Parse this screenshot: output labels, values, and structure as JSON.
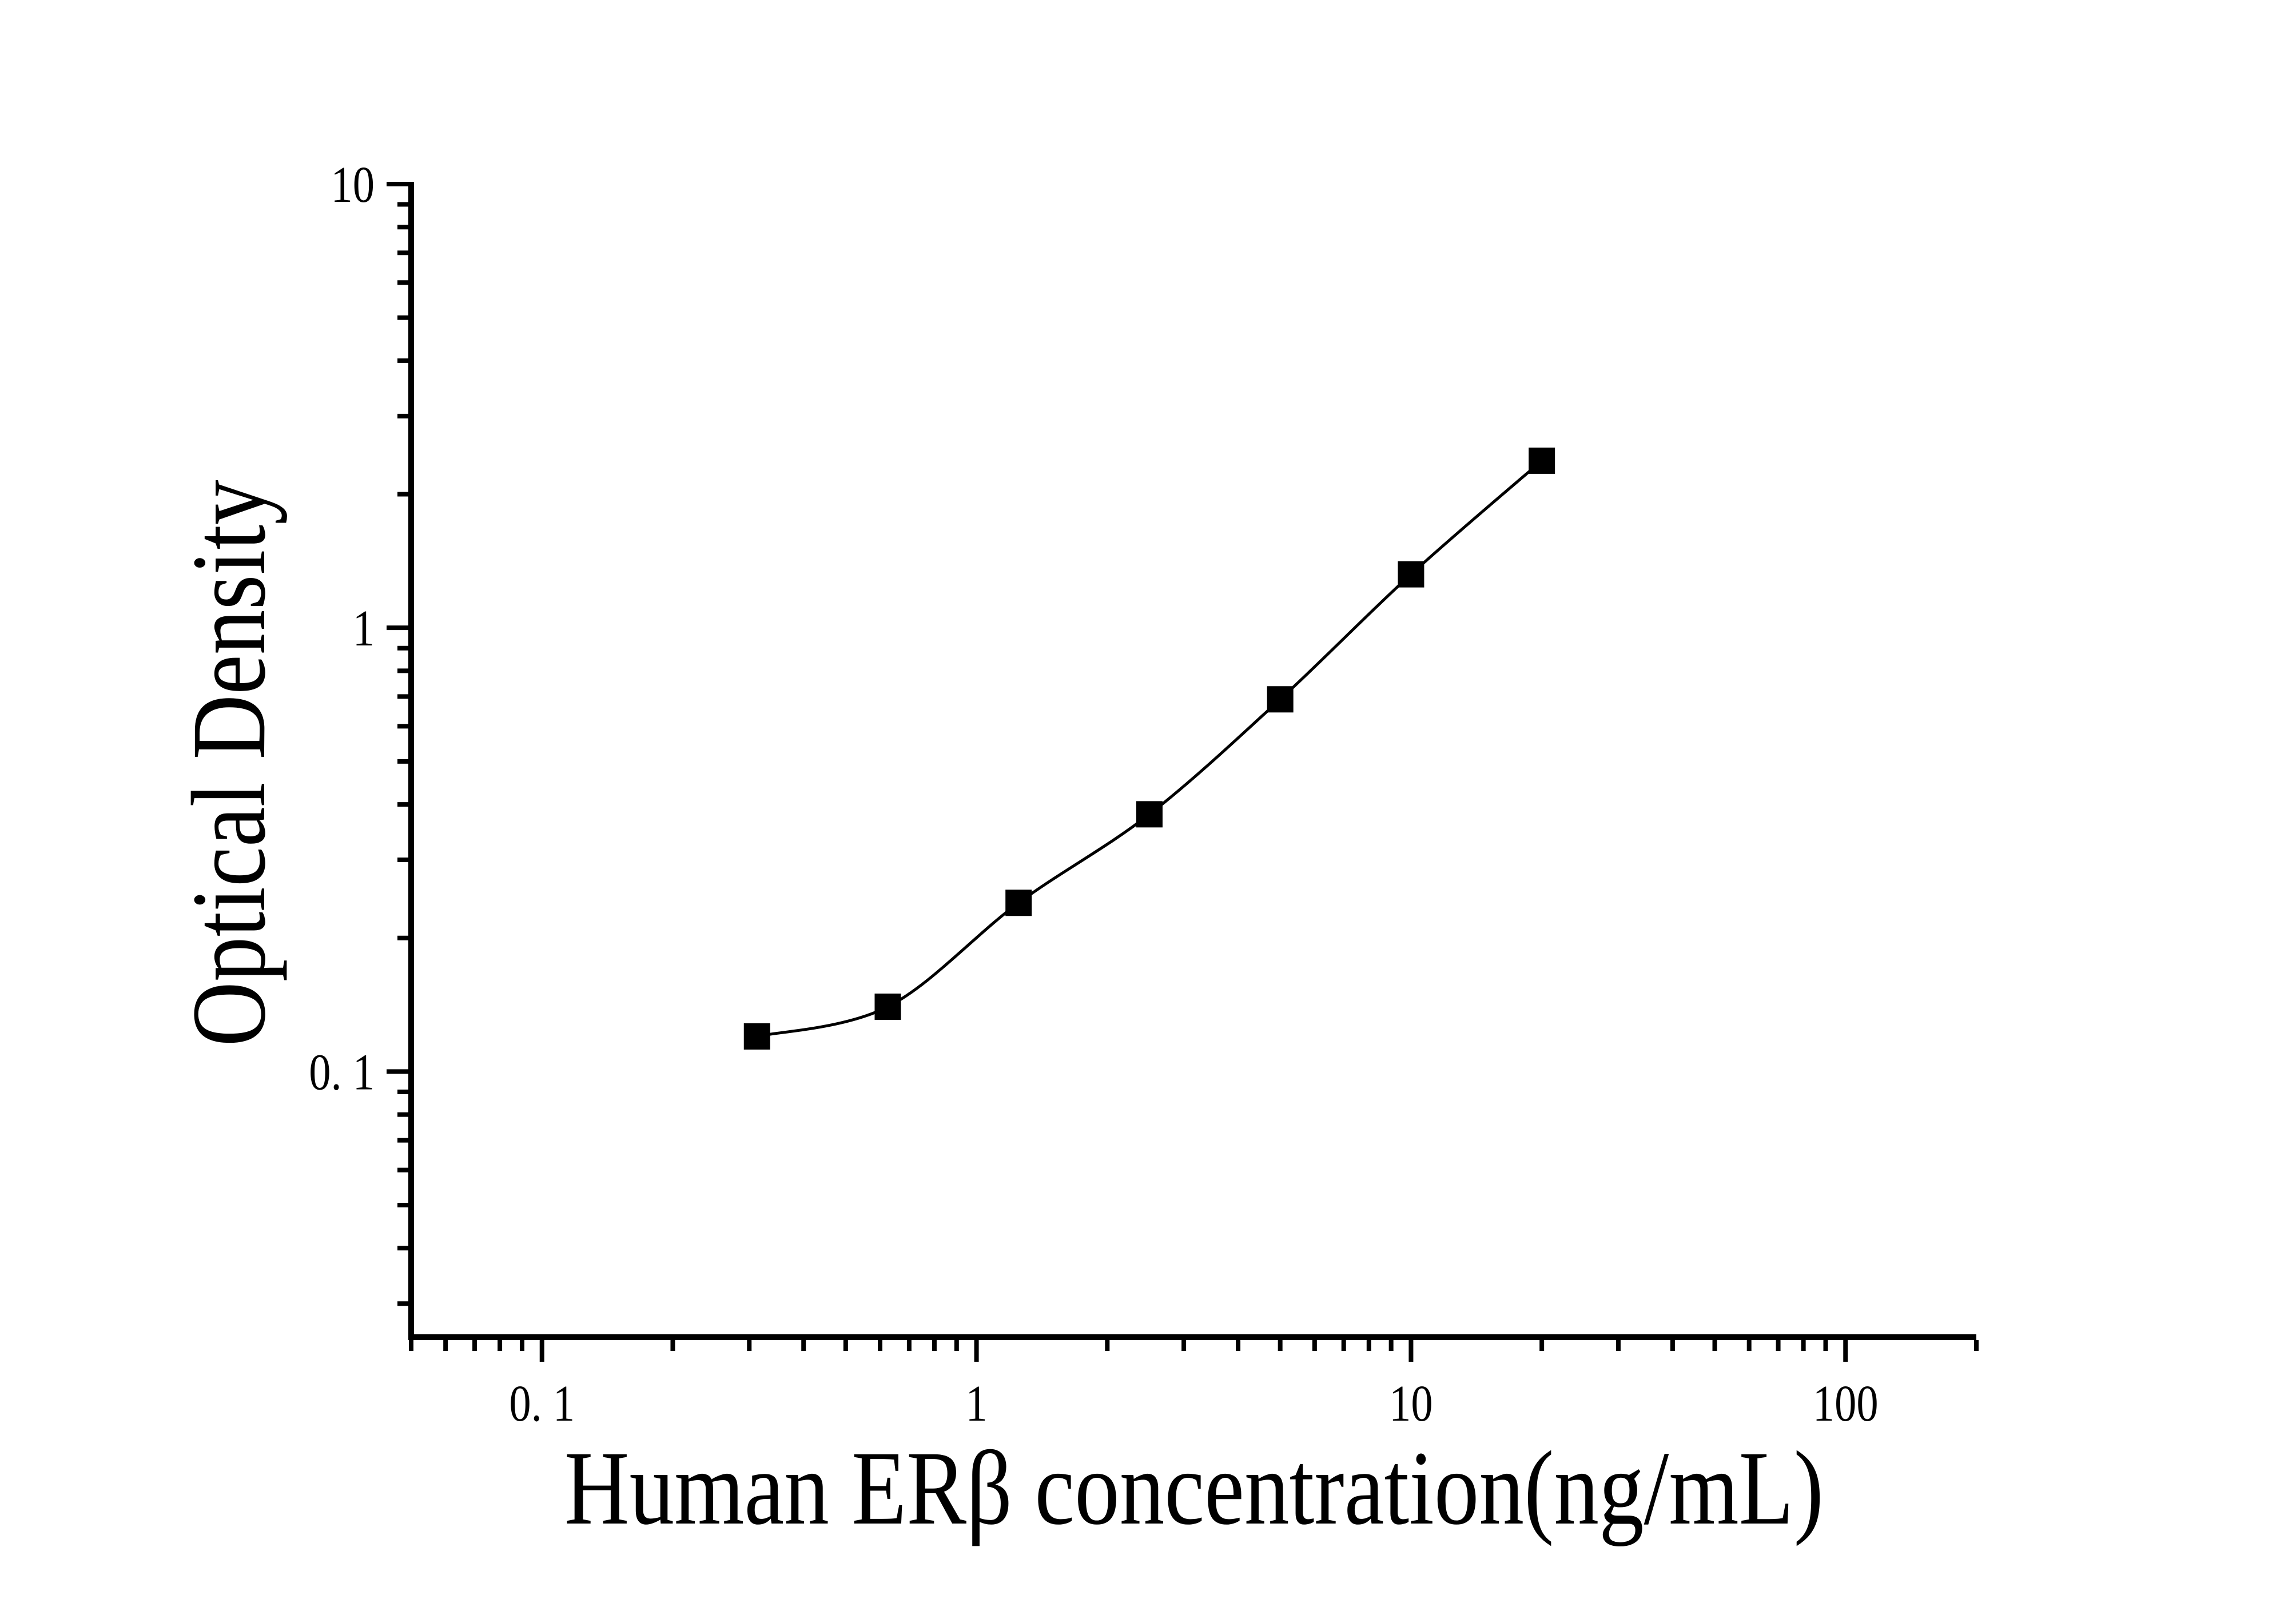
{
  "figure": {
    "background_color": "#ffffff",
    "ink_color": "#000000"
  },
  "chart_data": {
    "type": "scatter",
    "subtype": "log-log standard curve with smooth fit line",
    "title": "",
    "x_axis": {
      "label": "Human ERβ concentration(ng/mL)",
      "scale": "log",
      "range": [
        0.05,
        200
      ],
      "ticks": [
        {
          "value": 0.1,
          "label": "0. 1"
        },
        {
          "value": 1,
          "label": "1"
        },
        {
          "value": 10,
          "label": "10"
        },
        {
          "value": 100,
          "label": "100"
        }
      ],
      "minor_ticks": "log decades (2-9 per decade)"
    },
    "y_axis": {
      "label": "Optical Density",
      "scale": "log",
      "range": [
        0.0252,
        10
      ],
      "ticks": [
        {
          "value": 0.1,
          "label": "0. 1"
        },
        {
          "value": 1,
          "label": "1"
        },
        {
          "value": 10,
          "label": "10"
        }
      ],
      "minor_ticks": "log decades (2-9 per decade)"
    },
    "series": [
      {
        "name": "standard-curve",
        "marker": "filled-square",
        "line": "smooth-through-points",
        "color": "#000000",
        "points": [
          {
            "x": 0.3125,
            "y": 0.12
          },
          {
            "x": 0.625,
            "y": 0.14
          },
          {
            "x": 1.25,
            "y": 0.24
          },
          {
            "x": 2.5,
            "y": 0.38
          },
          {
            "x": 5,
            "y": 0.69
          },
          {
            "x": 10,
            "y": 1.32
          },
          {
            "x": 20,
            "y": 2.38
          }
        ]
      }
    ],
    "legend": "none",
    "grid": "off"
  }
}
